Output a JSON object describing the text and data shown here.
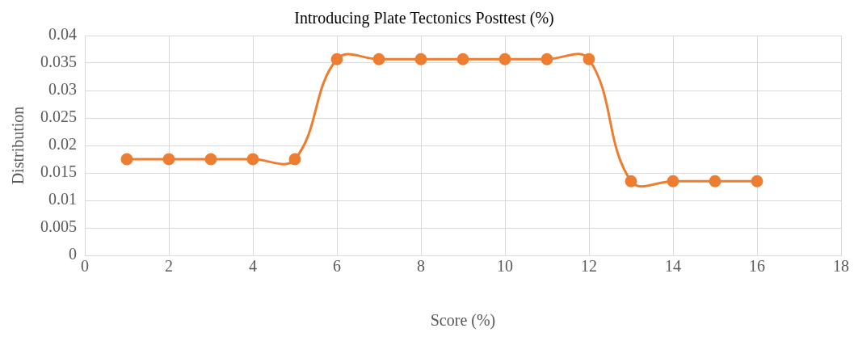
{
  "chart_data": {
    "type": "line",
    "title": "Introducing Plate Tectonics Posttest (%)",
    "xlabel": "Score (%)",
    "ylabel": "Distribution",
    "x": [
      1,
      2,
      3,
      4,
      5,
      6,
      7,
      8,
      9,
      10,
      11,
      12,
      13,
      14,
      15,
      16
    ],
    "series": [
      {
        "color": "#ed7d31",
        "values": [
          0.0175,
          0.0175,
          0.0175,
          0.0175,
          0.0175,
          0.0357,
          0.0357,
          0.0357,
          0.0357,
          0.0357,
          0.0357,
          0.0357,
          0.0135,
          0.0135,
          0.0135,
          0.0135
        ]
      }
    ],
    "xlim": [
      0,
      18
    ],
    "xticks": [
      0,
      2,
      4,
      6,
      8,
      10,
      12,
      14,
      16,
      18
    ],
    "ylim": [
      0,
      0.04
    ],
    "yticks": [
      0,
      0.005,
      0.01,
      0.015,
      0.02,
      0.025,
      0.03,
      0.035,
      0.04
    ],
    "grid": true,
    "legend": false,
    "marker": "circle",
    "line_style": "solid"
  }
}
